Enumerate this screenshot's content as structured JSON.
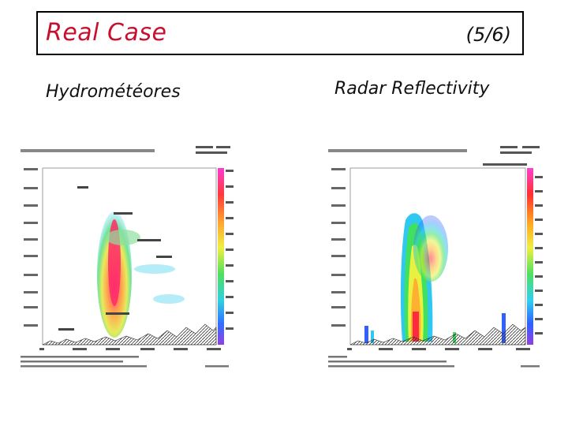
{
  "header": {
    "title": "Real Case",
    "slide_number": "(5/6)"
  },
  "panels": {
    "left": {
      "caption": "Hydrométéores"
    },
    "right": {
      "caption": "Radar Reflectivity"
    }
  },
  "colors": {
    "title": "#c8102e",
    "border": "#000000"
  }
}
